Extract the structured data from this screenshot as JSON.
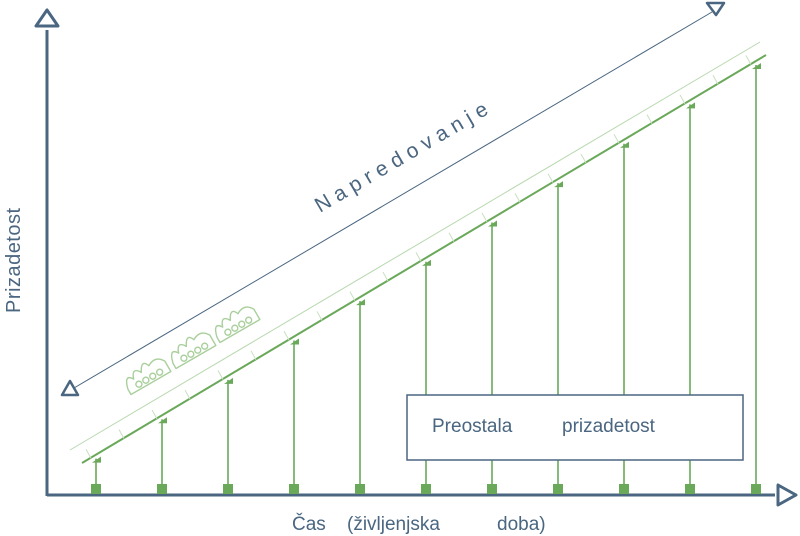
{
  "diagram": {
    "y_axis_label": "Prizadetost",
    "x_axis_label_part1": "Čas",
    "x_axis_label_part2": "(življenjska",
    "x_axis_label_part3": "doba)",
    "progression_label": "Napredovanje",
    "legend_part1": "Preostala",
    "legend_part2": "prizadetost",
    "bar_count": 11,
    "colors": {
      "axis": "#4a6680",
      "green": "#6aa85a",
      "text": "#4a6680"
    }
  }
}
